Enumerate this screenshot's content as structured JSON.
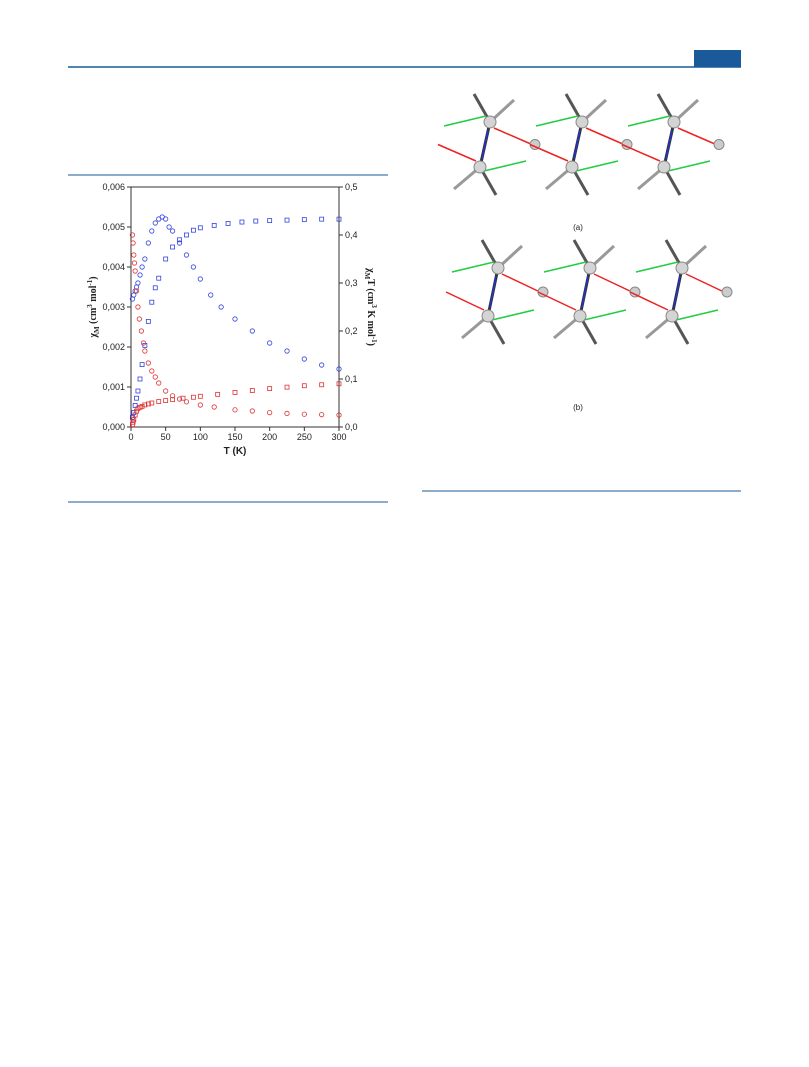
{
  "chart_data": {
    "type": "scatter",
    "ylabel_parts": [
      "χ",
      "M",
      " (cm",
      "3",
      "  mol",
      "-1",
      ")"
    ],
    "y2label_parts": [
      "χ",
      "M",
      "T (cm",
      "3",
      " K mol",
      "-1",
      ")"
    ],
    "xlabel": "T (K)",
    "xlim": [
      0,
      300
    ],
    "xticks": [
      0,
      50,
      100,
      150,
      200,
      250,
      300
    ],
    "ylim": [
      0,
      0.006
    ],
    "yticks": [
      {
        "value": 0,
        "label": "0,000"
      },
      {
        "value": 0.001,
        "label": "0,001"
      },
      {
        "value": 0.002,
        "label": "0,002"
      },
      {
        "value": 0.003,
        "label": "0,003"
      },
      {
        "value": 0.004,
        "label": "0,004"
      },
      {
        "value": 0.005,
        "label": "0,005"
      },
      {
        "value": 0.006,
        "label": "0,006"
      }
    ],
    "y2lim": [
      0,
      0.5
    ],
    "y2ticks": [
      {
        "value": 0,
        "label": "0,0"
      },
      {
        "value": 0.1,
        "label": "0,1"
      },
      {
        "value": 0.2,
        "label": "0,2"
      },
      {
        "value": 0.3,
        "label": "0,3"
      },
      {
        "value": 0.4,
        "label": "0,4"
      },
      {
        "value": 0.5,
        "label": "0,5"
      }
    ],
    "series": [
      {
        "color": "#3344dd",
        "marker": "circle",
        "axis": "y",
        "x": [
          2,
          4,
          6,
          8,
          10,
          13,
          16,
          20,
          25,
          30,
          35,
          40,
          45,
          50,
          55,
          60,
          70,
          80,
          90,
          100,
          115,
          130,
          150,
          175,
          200,
          225,
          250,
          275,
          300
        ],
        "values": [
          0.0032,
          0.0033,
          0.0034,
          0.0035,
          0.0036,
          0.0038,
          0.004,
          0.0042,
          0.0046,
          0.0049,
          0.0051,
          0.0052,
          0.00525,
          0.0052,
          0.005,
          0.0049,
          0.0046,
          0.0043,
          0.004,
          0.0037,
          0.0033,
          0.003,
          0.0027,
          0.0024,
          0.0021,
          0.0019,
          0.0017,
          0.00155,
          0.00145
        ]
      },
      {
        "color": "#3344dd",
        "marker": "square",
        "axis": "y2",
        "x": [
          2,
          4,
          6,
          8,
          10,
          13,
          16,
          20,
          25,
          30,
          35,
          40,
          50,
          60,
          70,
          80,
          90,
          100,
          120,
          140,
          160,
          180,
          200,
          225,
          250,
          275,
          300
        ],
        "values": [
          0.02,
          0.03,
          0.045,
          0.06,
          0.075,
          0.1,
          0.13,
          0.17,
          0.22,
          0.26,
          0.29,
          0.31,
          0.35,
          0.375,
          0.39,
          0.4,
          0.41,
          0.415,
          0.42,
          0.424,
          0.427,
          0.429,
          0.43,
          0.431,
          0.432,
          0.433,
          0.433
        ]
      },
      {
        "color": "#dd3333",
        "marker": "circle",
        "axis": "y",
        "x": [
          2,
          3,
          4,
          5,
          6,
          8,
          10,
          12,
          15,
          18,
          20,
          25,
          30,
          35,
          40,
          50,
          60,
          70,
          80,
          100,
          120,
          150,
          175,
          200,
          225,
          250,
          275,
          300
        ],
        "values": [
          0.0048,
          0.0046,
          0.0043,
          0.0041,
          0.0039,
          0.0034,
          0.003,
          0.0027,
          0.0024,
          0.0021,
          0.0019,
          0.0016,
          0.0014,
          0.00125,
          0.0011,
          0.0009,
          0.00078,
          0.0007,
          0.00063,
          0.00055,
          0.0005,
          0.00043,
          0.0004,
          0.00036,
          0.00034,
          0.00032,
          0.00031,
          0.0003
        ]
      },
      {
        "color": "#dd3333",
        "marker": "square",
        "axis": "y2",
        "x": [
          2,
          3,
          4,
          6,
          8,
          10,
          13,
          16,
          20,
          25,
          30,
          40,
          50,
          60,
          75,
          90,
          100,
          125,
          150,
          175,
          200,
          225,
          250,
          275,
          300
        ],
        "values": [
          0.005,
          0.01,
          0.015,
          0.025,
          0.033,
          0.038,
          0.041,
          0.043,
          0.046,
          0.048,
          0.05,
          0.053,
          0.055,
          0.057,
          0.06,
          0.062,
          0.064,
          0.068,
          0.072,
          0.076,
          0.08,
          0.083,
          0.086,
          0.088,
          0.09
        ]
      }
    ]
  },
  "figure_labels": [
    "(a)",
    "(b)"
  ]
}
